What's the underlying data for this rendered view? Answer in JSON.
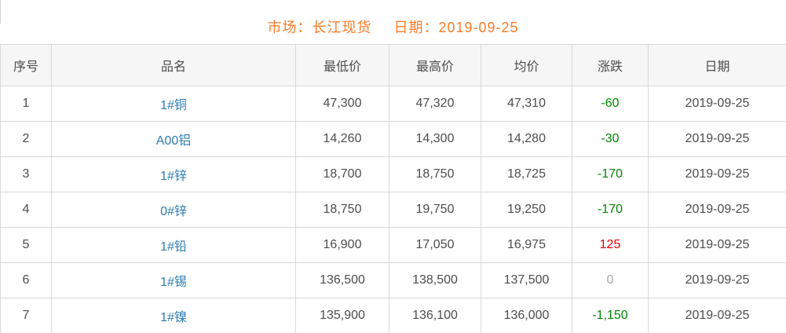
{
  "header": {
    "market": "市场：长江现货",
    "date": "日期：2019-09-25"
  },
  "table": {
    "columns": [
      "序号",
      "品名",
      "最低价",
      "最高价",
      "均价",
      "涨跌",
      "日期"
    ],
    "rows": [
      {
        "no": "1",
        "name": "1#铜",
        "low": "47,300",
        "high": "47,320",
        "avg": "47,310",
        "change": "-60",
        "change_dir": "down",
        "date": "2019-09-25"
      },
      {
        "no": "2",
        "name": "A00铝",
        "low": "14,260",
        "high": "14,300",
        "avg": "14,280",
        "change": "-30",
        "change_dir": "down",
        "date": "2019-09-25"
      },
      {
        "no": "3",
        "name": "1#锌",
        "low": "18,700",
        "high": "18,750",
        "avg": "18,725",
        "change": "-170",
        "change_dir": "down",
        "date": "2019-09-25"
      },
      {
        "no": "4",
        "name": "0#锌",
        "low": "18,750",
        "high": "19,750",
        "avg": "19,250",
        "change": "-170",
        "change_dir": "down",
        "date": "2019-09-25"
      },
      {
        "no": "5",
        "name": "1#铅",
        "low": "16,900",
        "high": "17,050",
        "avg": "16,975",
        "change": "125",
        "change_dir": "up",
        "date": "2019-09-25"
      },
      {
        "no": "6",
        "name": "1#锡",
        "low": "136,500",
        "high": "138,500",
        "avg": "137,500",
        "change": "0",
        "change_dir": "flat",
        "date": "2019-09-25"
      },
      {
        "no": "7",
        "name": "1#镍",
        "low": "135,900",
        "high": "136,100",
        "avg": "136,000",
        "change": "-1,150",
        "change_dir": "down",
        "date": "2019-09-25"
      }
    ],
    "change_colors": {
      "up": "#e60000",
      "down": "#008800",
      "flat": "#aaaaaa"
    },
    "colors": {
      "title_orange": "#fe7b25",
      "product_link_blue": "#2d7cb1",
      "body_text": "#4d4d4d",
      "border": "#d9d9d9",
      "header_bg": "#f6f6f6"
    }
  }
}
